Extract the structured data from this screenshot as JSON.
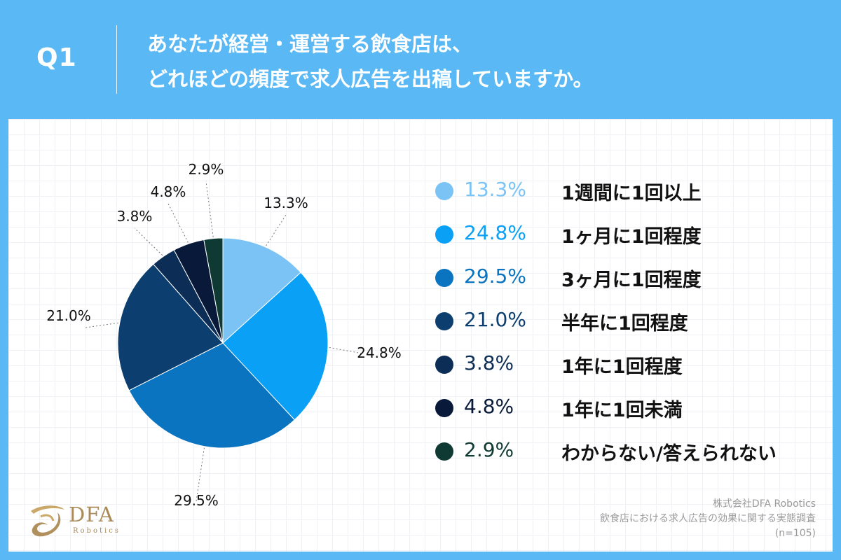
{
  "header": {
    "question_label": "Q1",
    "title_line1": "あなたが経営・運営する飲食店は、",
    "title_line2": "どれほどの頻度で求人広告を出稿していますか。"
  },
  "chart_data": {
    "type": "pie",
    "title": "あなたが経営・運営する飲食店は、どれほどの頻度で求人広告を出稿していますか。",
    "slices": [
      {
        "label": "1週間に1回以上",
        "value": 13.3,
        "display": "13.3%",
        "color": "#7cc3f5"
      },
      {
        "label": "1ヶ月に1回程度",
        "value": 24.8,
        "display": "24.8%",
        "color": "#0aa0f5"
      },
      {
        "label": "3ヶ月に1回程度",
        "value": 29.5,
        "display": "29.5%",
        "color": "#0a74c0"
      },
      {
        "label": "半年に1回程度",
        "value": 21.0,
        "display": "21.0%",
        "color": "#0c3f6f"
      },
      {
        "label": "1年に1回程度",
        "value": 3.8,
        "display": "3.8%",
        "color": "#0c2d55"
      },
      {
        "label": "1年に1回未満",
        "value": 4.8,
        "display": "4.8%",
        "color": "#081939"
      },
      {
        "label": "わからない/答えられない",
        "value": 2.9,
        "display": "2.9%",
        "color": "#0f3a33"
      }
    ],
    "legend_position": "right",
    "sample_note": "(n=105)"
  },
  "logo": {
    "name": "DFA",
    "sub": "Robotics"
  },
  "source": {
    "company": "株式会社DFA Robotics",
    "survey": "飲食店における求人広告の効果に関する実態調査",
    "sample": "(n=105)"
  }
}
